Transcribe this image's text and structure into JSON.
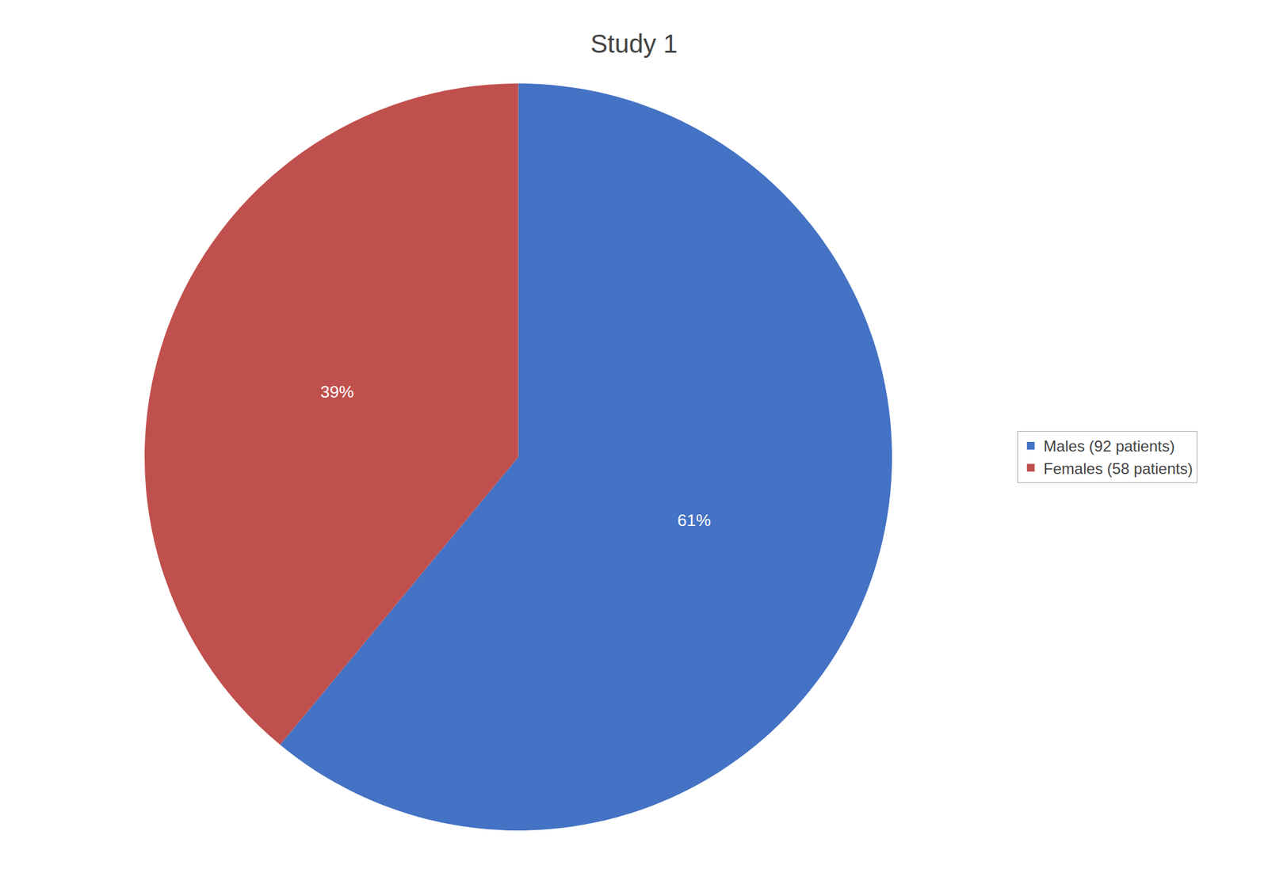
{
  "chart_data": {
    "type": "pie",
    "title": "Study 1",
    "categories": [
      "Males (92 patients)",
      "Females (58 patients)"
    ],
    "values": [
      61,
      39
    ],
    "value_labels": [
      "61%",
      "39%"
    ],
    "colors": [
      "#4472C4",
      "#C0504D"
    ],
    "data_labels": true,
    "legend": "right"
  }
}
